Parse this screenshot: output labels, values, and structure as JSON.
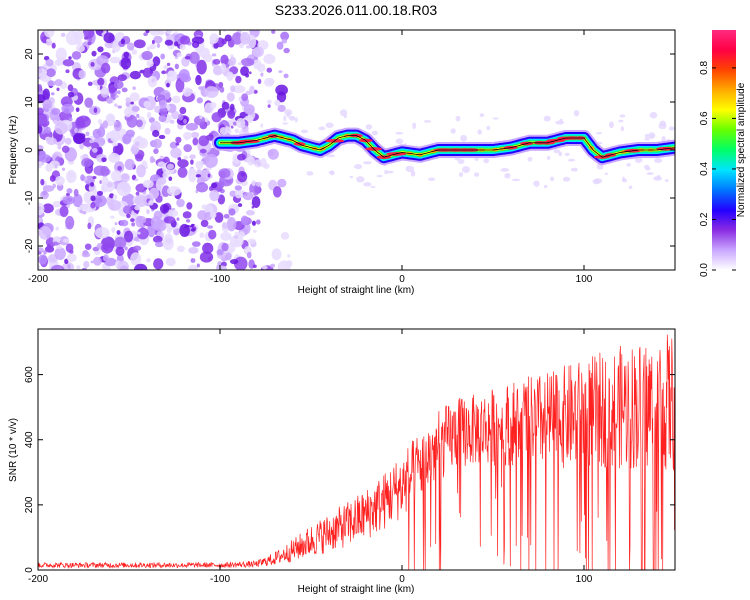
{
  "page": {
    "title": "S233.2026.011.00.18.R03"
  },
  "chart_data": [
    {
      "type": "heatmap",
      "name": "spectrogram",
      "title": "S233.2026.011.00.18.R03",
      "xlabel": "Height of straight line (km)",
      "ylabel": "Frequency (Hz)",
      "xlim": [
        -200,
        150
      ],
      "ylim": [
        -25,
        25
      ],
      "xticks": [
        -200,
        -100,
        0,
        100
      ],
      "yticks": [
        -20,
        -10,
        0,
        10,
        20
      ],
      "noise_region_x": [
        -200,
        -80
      ],
      "ridge_x": [
        -100,
        -90,
        -80,
        -70,
        -65,
        -60,
        -55,
        -50,
        -45,
        -40,
        -35,
        -30,
        -25,
        -20,
        -15,
        -10,
        -5,
        0,
        10,
        20,
        30,
        40,
        50,
        60,
        70,
        80,
        90,
        100,
        105,
        110,
        115,
        120,
        130,
        140,
        150
      ],
      "ridge_frequency": [
        1.5,
        1.5,
        2,
        3,
        2.5,
        2,
        1,
        0.5,
        0,
        1,
        2.5,
        3,
        3,
        2,
        0,
        -1.5,
        -1,
        -0.5,
        -1,
        0,
        0,
        0,
        0,
        0.5,
        1.5,
        1.5,
        2.5,
        2.5,
        0,
        -1.5,
        -1,
        -0.5,
        0,
        0,
        0.5
      ],
      "colorbar": {
        "label": "Normalized spectral amplitude",
        "range": [
          0,
          0.95
        ],
        "ticks": [
          0.0,
          0.2,
          0.4,
          0.6,
          0.8
        ],
        "tick_labels": [
          "0.0",
          "0.2",
          "0.4",
          "0.6",
          "0.8"
        ],
        "colors": [
          "#ffffff",
          "#c9a6ff",
          "#8a2be2",
          "#2200ff",
          "#0077ff",
          "#00e5ff",
          "#00ff66",
          "#66ff00",
          "#ffff00",
          "#ffaa00",
          "#ff4400",
          "#ff0044",
          "#ff2a7f"
        ]
      }
    },
    {
      "type": "line",
      "name": "snr",
      "xlabel": "Height of straight line (km)",
      "ylabel": "SNR (10 * v/v)",
      "xlim": [
        -200,
        150
      ],
      "ylim": [
        0,
        740
      ],
      "xticks": [
        -200,
        -100,
        0,
        100
      ],
      "yticks": [
        0,
        200,
        400,
        600
      ],
      "color": "#ff2020",
      "envelope_x": [
        -200,
        -150,
        -100,
        -80,
        -70,
        -60,
        -50,
        -40,
        -30,
        -20,
        -10,
        0,
        10,
        20,
        30,
        40,
        50,
        60,
        70,
        80,
        90,
        100,
        110,
        120,
        130,
        140,
        150
      ],
      "envelope_mean": [
        15,
        15,
        15,
        18,
        35,
        60,
        90,
        115,
        140,
        170,
        210,
        260,
        320,
        380,
        420,
        430,
        440,
        450,
        455,
        460,
        470,
        480,
        490,
        500,
        505,
        510,
        515
      ],
      "envelope_spread": [
        8,
        8,
        8,
        10,
        20,
        35,
        50,
        60,
        70,
        80,
        90,
        100,
        110,
        110,
        110,
        110,
        120,
        130,
        140,
        150,
        160,
        170,
        180,
        190,
        200,
        210,
        220
      ]
    }
  ]
}
